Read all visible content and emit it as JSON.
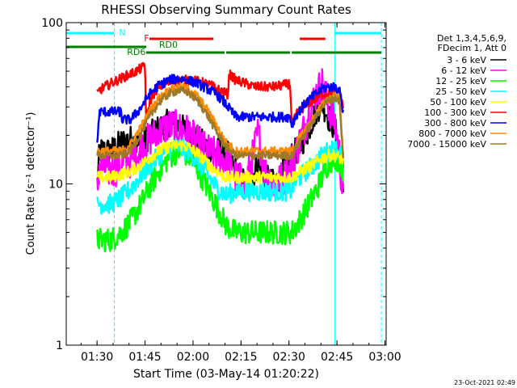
{
  "chart_data": {
    "type": "line",
    "title": "RHESSI Observing Summary Count Rates",
    "xlabel": "Start Time (03-May-14 01:20:22)",
    "ylabel": "Count Rate (s⁻¹ detector⁻¹)",
    "y_scale": "log",
    "ylim": [
      1,
      100
    ],
    "xlim_minutes_after_01_20_22": [
      0,
      100
    ],
    "x_tick_labels": [
      "01:30",
      "01:45",
      "02:00",
      "02:15",
      "02:30",
      "02:45",
      "03:00"
    ],
    "x_tick_minutes": [
      9.63,
      24.63,
      39.63,
      54.63,
      69.63,
      84.63,
      99.63
    ],
    "y_tick_labels": [
      "1",
      "10",
      "100"
    ],
    "y_tick_values": [
      1,
      10,
      100
    ],
    "grid": false,
    "legend_position": "right",
    "legend_header": [
      "Det 1,3,4,5,6,9,",
      "FDecim 1, Att 0"
    ],
    "series": [
      {
        "name": "3 - 6 keV",
        "color": "#000000",
        "x": [
          9.7,
          10.4,
          14,
          17.2,
          20,
          23,
          26,
          29,
          32,
          35,
          38,
          41,
          44,
          47,
          50,
          53,
          56,
          58,
          60,
          62,
          65,
          68,
          70,
          70.5,
          72,
          75,
          78,
          80,
          82,
          84,
          85.4,
          86.6
        ],
        "y": [
          9.5,
          16,
          16,
          18,
          19,
          17,
          20,
          22,
          24,
          23,
          21,
          19,
          17,
          16,
          16,
          12,
          10,
          11,
          13,
          11,
          10,
          12,
          13,
          15,
          16,
          20,
          28,
          32,
          26,
          22,
          16,
          8
        ]
      },
      {
        "name": "6 - 12 keV",
        "color": "#ff00ff",
        "x": [
          9.7,
          10.4,
          14,
          17.2,
          20,
          23,
          26,
          29,
          32,
          35,
          38,
          41,
          44,
          47,
          50,
          53,
          56,
          58,
          60,
          62,
          65,
          68,
          70,
          70.5,
          72,
          75,
          78,
          80,
          82,
          84,
          85.4,
          86.6
        ],
        "y": [
          9,
          13,
          12,
          13,
          14,
          16,
          19,
          21,
          23,
          22,
          21,
          18,
          16,
          15,
          14,
          11,
          10,
          14,
          21,
          12,
          10,
          11,
          12,
          14,
          16,
          24,
          36,
          42,
          30,
          24,
          15,
          8
        ]
      },
      {
        "name": "12 - 25 keV",
        "color": "#00ff00",
        "x": [
          9.7,
          10.4,
          14,
          17.2,
          20,
          23,
          26,
          29,
          32,
          35,
          38,
          41,
          44,
          47,
          50,
          53,
          56,
          58,
          60,
          62,
          65,
          68,
          70,
          70.5,
          72,
          75,
          78,
          80,
          82,
          84,
          85.4,
          86.6
        ],
        "y": [
          4.5,
          4.5,
          4.5,
          5,
          5.8,
          7.3,
          9.5,
          12,
          14.5,
          16,
          15,
          12.5,
          9.5,
          7.3,
          5.5,
          5,
          5,
          5,
          5,
          5,
          5,
          5,
          5,
          5,
          5.5,
          7,
          9,
          11,
          13.5,
          14.5,
          14,
          12
        ]
      },
      {
        "name": "25 - 50 keV",
        "color": "#00ffff",
        "x": [
          9.7,
          10.4,
          14,
          17.2,
          20,
          23,
          26,
          29,
          32,
          35,
          38,
          41,
          44,
          47,
          50,
          53,
          56,
          58,
          60,
          62,
          65,
          68,
          70,
          70.5,
          72,
          75,
          78,
          80,
          82,
          84,
          85.4,
          86.6
        ],
        "y": [
          7.5,
          7.5,
          7.5,
          8.2,
          9.3,
          11,
          13,
          15,
          16.5,
          17,
          16,
          14,
          11.5,
          9.5,
          8.5,
          9,
          9,
          9,
          9,
          9,
          9,
          9,
          9,
          9.5,
          10.5,
          12,
          13.5,
          15,
          16,
          16.5,
          16,
          15
        ]
      },
      {
        "name": "50 - 100 keV",
        "color": "#ffff00",
        "x": [
          9.7,
          10.4,
          14,
          17.2,
          20,
          23,
          26,
          29,
          32,
          35,
          38,
          41,
          44,
          47,
          50,
          53,
          56,
          58,
          60,
          62,
          65,
          68,
          70,
          70.5,
          72,
          75,
          78,
          80,
          82,
          84,
          85.4,
          86.6
        ],
        "y": [
          11,
          11,
          11,
          11.5,
          12,
          13,
          14.5,
          16,
          17,
          17.5,
          17,
          15.5,
          13.5,
          12,
          11,
          11,
          11,
          11,
          11,
          11,
          11,
          11,
          11,
          11,
          11.5,
          12.5,
          13.5,
          14.5,
          15,
          15,
          14.5,
          14
        ]
      },
      {
        "name": "100 - 300 keV",
        "color": "#ff0000",
        "x": [
          9.7,
          10.4,
          12,
          14,
          16,
          18,
          20,
          22,
          24,
          24.6,
          25,
          26,
          28,
          30,
          33,
          36,
          39,
          42,
          45,
          48,
          50.5,
          51,
          53,
          56,
          59,
          62,
          65,
          68,
          70,
          70.5,
          72,
          75,
          78,
          80,
          82,
          84,
          85.4,
          86.6
        ],
        "y": [
          36,
          38,
          40,
          42,
          44,
          46,
          48,
          50,
          53,
          56,
          24,
          32,
          38,
          41,
          43,
          44,
          44,
          43,
          41,
          38,
          36,
          48,
          44,
          42,
          40,
          40,
          40,
          41,
          42,
          23,
          27,
          31,
          34,
          36,
          37,
          37,
          36,
          30
        ]
      },
      {
        "name": "300 - 800 keV",
        "color": "#0000ff",
        "x": [
          9.7,
          10.4,
          14,
          17.2,
          17.3,
          20,
          23,
          26,
          29,
          32,
          35,
          38,
          41,
          44,
          47,
          50,
          53,
          56,
          59,
          62,
          65,
          68,
          70,
          70.5,
          72,
          75,
          78,
          80,
          82,
          84,
          85.4,
          86.6
        ],
        "y": [
          18,
          28,
          28,
          28,
          25,
          25,
          29,
          36,
          41,
          44,
          45,
          44,
          42,
          39,
          36,
          31,
          26,
          26,
          26,
          26,
          26,
          26,
          26,
          23,
          27,
          32,
          36,
          39,
          40,
          40,
          38,
          28
        ]
      },
      {
        "name": "800 - 7000 keV",
        "color": "#ff8c00",
        "x": [
          9.7,
          10.4,
          14,
          17.2,
          20,
          23,
          26,
          29,
          32,
          35,
          38,
          41,
          44,
          47,
          50,
          53,
          56,
          59,
          62,
          65,
          68,
          70,
          70.5,
          72,
          75,
          78,
          80,
          82,
          84,
          85.4,
          86.6
        ],
        "y": [
          16,
          16,
          16,
          16,
          17.5,
          22,
          28,
          34,
          38,
          40,
          39,
          35,
          29,
          23,
          18,
          16,
          16,
          16,
          16,
          16,
          16,
          16,
          16,
          18,
          22,
          27,
          31,
          34,
          35,
          34,
          15
        ]
      },
      {
        "name": "7000 - 15000 keV",
        "color": "#a0782a",
        "x": [
          9.7,
          10.4,
          14,
          17.2,
          20,
          23,
          26,
          29,
          32,
          35,
          38,
          41,
          44,
          47,
          50,
          53,
          56,
          59,
          62,
          65,
          68,
          70,
          70.5,
          72,
          75,
          78,
          80,
          82,
          84,
          85.4,
          86.6
        ],
        "y": [
          15,
          15,
          15,
          15,
          16,
          20,
          26,
          32,
          36,
          38,
          37,
          33,
          27,
          21,
          17,
          15,
          15,
          15,
          15,
          15,
          15,
          15,
          15,
          17,
          21,
          26,
          30,
          33,
          34,
          33,
          14
        ]
      }
    ],
    "flag_bars": [
      {
        "label": "N",
        "color": "#00ffff",
        "label_at": 16.5,
        "segments": [
          [
            0,
            15
          ]
        ]
      },
      {
        "label": "",
        "color": "#00ffff",
        "segments": [
          [
            84,
            98.5
          ]
        ]
      },
      {
        "label": "F",
        "color": "#ff0000",
        "label_at": 24.3,
        "segments": [
          [
            26,
            46
          ],
          [
            73,
            81
          ]
        ]
      },
      {
        "label": "RD0",
        "color": "#008000",
        "label_at": 29,
        "segments": [
          [
            0,
            25
          ]
        ]
      },
      {
        "label": "RD6",
        "color": "#008000",
        "label_at": 19,
        "segments": [
          [
            25,
            49.5
          ],
          [
            50,
            70
          ],
          [
            70.5,
            98.5
          ]
        ]
      }
    ],
    "vertical_markers": [
      {
        "color": "#00ffff",
        "style": "solid",
        "minutes": [
          0,
          84
        ]
      },
      {
        "color": "#00ffff",
        "style": "dashed",
        "minutes": [
          15,
          98.5
        ]
      }
    ],
    "timestamp": "23-Oct-2021 02:49"
  }
}
